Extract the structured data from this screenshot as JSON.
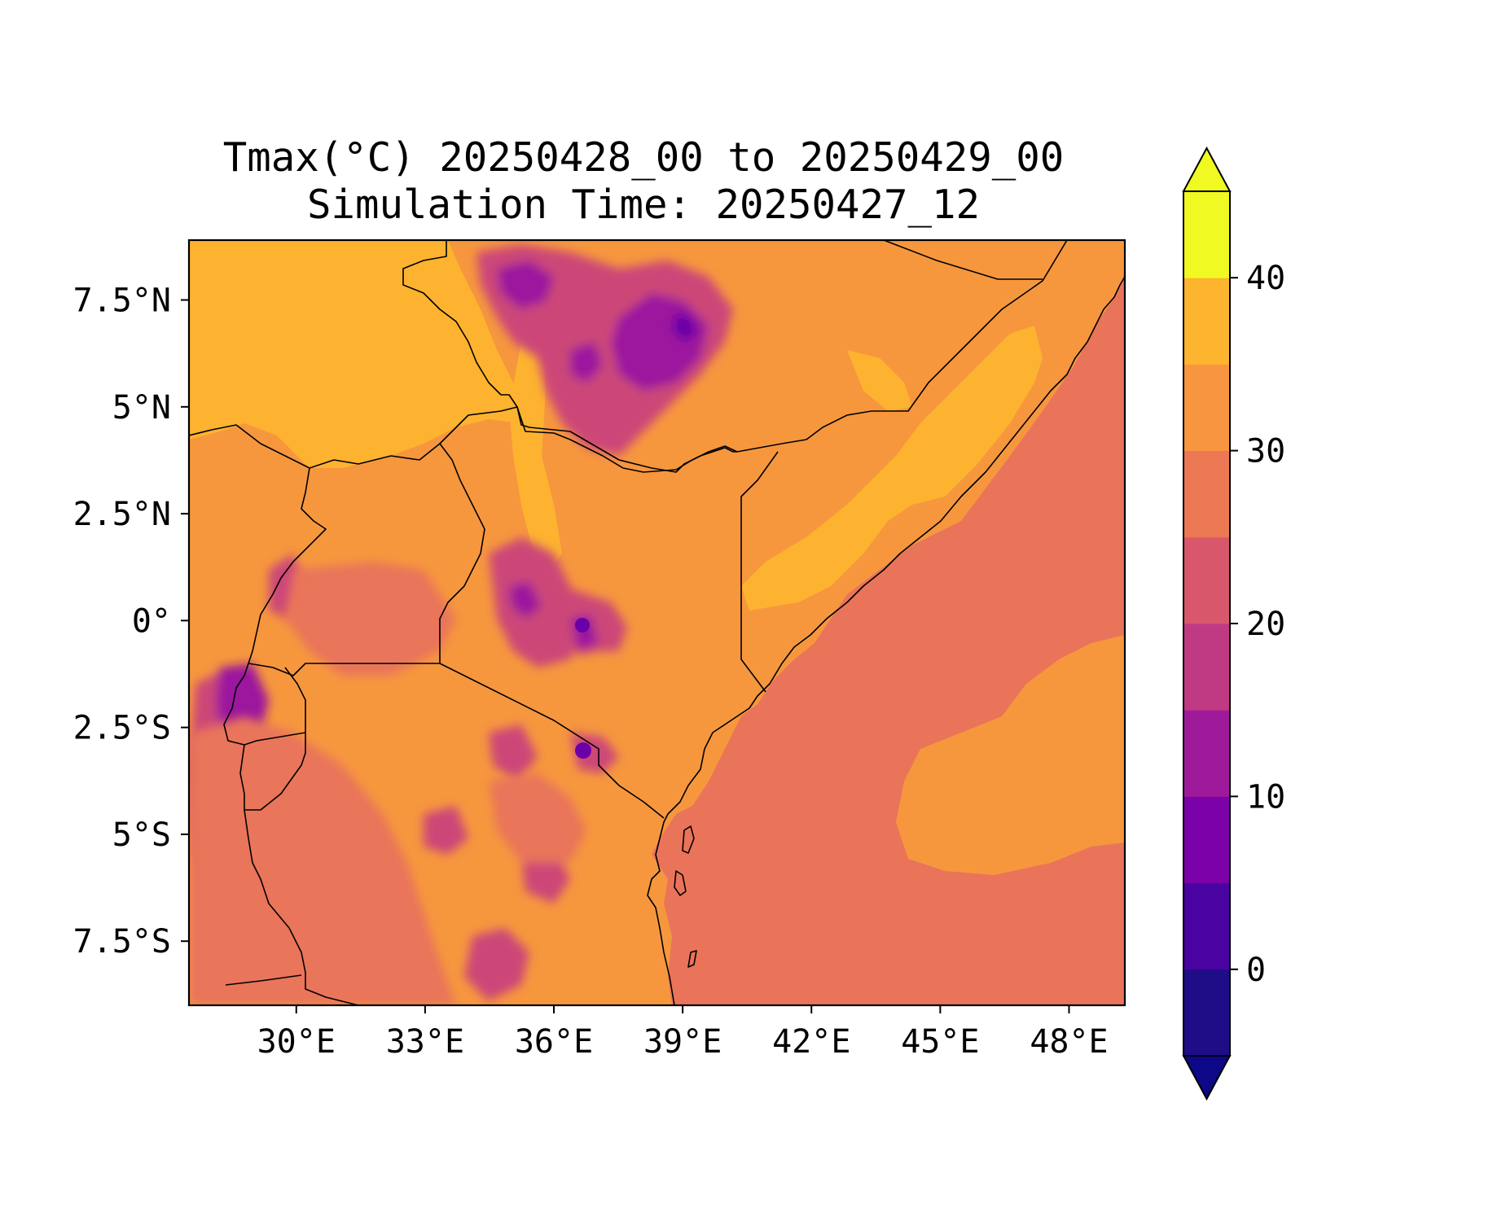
{
  "title": {
    "line1": "Tmax(°C) 20250428_00 to 20250429_00",
    "line2": "Simulation Time: 20250427_12"
  },
  "map": {
    "extent": {
      "lon": [
        27.5,
        49.3
      ],
      "lat": [
        -9.0,
        8.9
      ]
    },
    "x_ticks": [
      {
        "lon": 30,
        "label": "30°E"
      },
      {
        "lon": 33,
        "label": "33°E"
      },
      {
        "lon": 36,
        "label": "36°E"
      },
      {
        "lon": 39,
        "label": "39°E"
      },
      {
        "lon": 42,
        "label": "42°E"
      },
      {
        "lon": 45,
        "label": "45°E"
      },
      {
        "lon": 48,
        "label": "48°E"
      }
    ],
    "y_ticks": [
      {
        "lat": 7.5,
        "label": "7.5°N"
      },
      {
        "lat": 5,
        "label": "5°N"
      },
      {
        "lat": 2.5,
        "label": "2.5°N"
      },
      {
        "lat": 0,
        "label": "0°"
      },
      {
        "lat": -2.5,
        "label": "2.5°S"
      },
      {
        "lat": -5,
        "label": "5°S"
      },
      {
        "lat": -7.5,
        "label": "7.5°S"
      }
    ],
    "field_colors": {
      "ocean": "#e9745a",
      "highlands": "#cc4778",
      "high_peaks": "#9c179e",
      "peak_cores": "#6a00a8",
      "warm_plains": "#f6973e",
      "hot_plains": "#fdb32f"
    },
    "border_color": "#000000"
  },
  "colorbar": {
    "range": [
      -5,
      45
    ],
    "levels": [
      -5,
      0,
      5,
      10,
      15,
      20,
      25,
      30,
      35,
      40,
      45
    ],
    "bands": [
      "#1f0c87",
      "#4903a0",
      "#7a02a8",
      "#9f1a9b",
      "#c03a83",
      "#d8576b",
      "#ec7853",
      "#f89540",
      "#fdb42f",
      "#f0f921"
    ],
    "under_color": "#0d0887",
    "over_color": "#f0f921",
    "ticks": [
      {
        "value": 0,
        "label": "0"
      },
      {
        "value": 10,
        "label": "10"
      },
      {
        "value": 20,
        "label": "20"
      },
      {
        "value": 30,
        "label": "30"
      },
      {
        "value": 40,
        "label": "40"
      }
    ]
  }
}
